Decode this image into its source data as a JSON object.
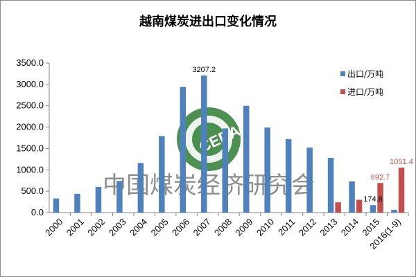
{
  "chart_data": {
    "type": "bar",
    "title": "越南煤炭进出口变化情况",
    "categories": [
      "2000",
      "2001",
      "2002",
      "2003",
      "2004",
      "2005",
      "2006",
      "2007",
      "2008",
      "2009",
      "2010",
      "2011",
      "2012",
      "2013",
      "2014",
      "2015",
      "2016(1-9)"
    ],
    "series": [
      {
        "name": "出口/万吨",
        "color": "#4f81bd",
        "values": [
          330,
          440,
          600,
          740,
          1160,
          1790,
          2940,
          3207.2,
          1970,
          2500,
          1990,
          1720,
          1520,
          1280,
          730,
          174.8,
          65
        ]
      },
      {
        "name": "进口/万吨",
        "color": "#c0504d",
        "values": [
          null,
          null,
          null,
          null,
          null,
          null,
          null,
          null,
          null,
          null,
          null,
          null,
          null,
          240,
          300,
          692.7,
          1051.4
        ]
      }
    ],
    "data_labels": [
      {
        "series": 0,
        "index": 7,
        "text": "3207.2",
        "color": "#000000"
      },
      {
        "series": 0,
        "index": 15,
        "text": "174.8",
        "color": "#000000"
      },
      {
        "series": 1,
        "index": 15,
        "text": "692.7",
        "color": "#c0504d"
      },
      {
        "series": 1,
        "index": 16,
        "text": "1051.4",
        "color": "#c0504d"
      }
    ],
    "ylim": [
      0,
      3500
    ],
    "yticks": [
      "0.0",
      "500.0",
      "1000.0",
      "1500.0",
      "2000.0",
      "2500.0",
      "3000.0",
      "3500.0"
    ],
    "xlabel": "",
    "ylabel": "",
    "grid": false,
    "legend_position": "right"
  },
  "watermark": {
    "text": "中国煤炭经济研究会",
    "logo_text": "CERA",
    "logo_color": "#2e7d32"
  }
}
